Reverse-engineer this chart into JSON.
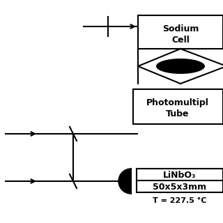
{
  "bg_color": "#ffffff",
  "line_color": "#000000",
  "sodium_cell_label": [
    "Sodium",
    "Cell"
  ],
  "pmt_label": [
    "Photomultipl",
    "Tube"
  ],
  "linbo3_label": [
    "LiNbO₃",
    "50x5x3mm"
  ],
  "temp_label": "T = 227.5 °C"
}
